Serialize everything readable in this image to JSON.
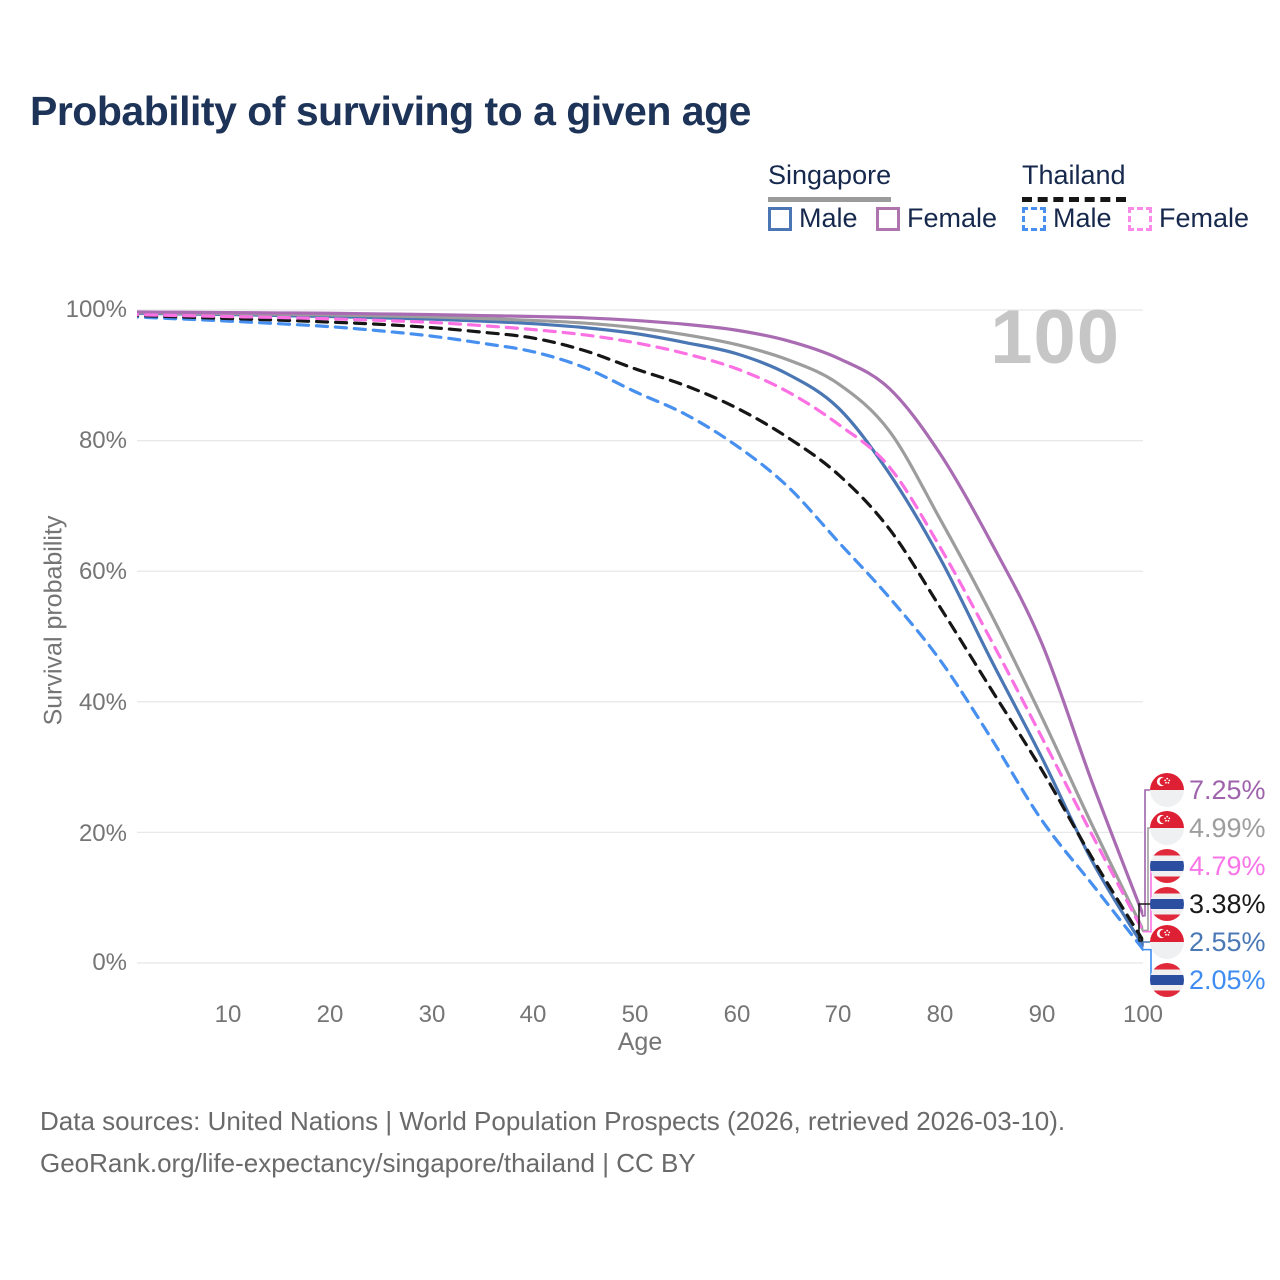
{
  "title": "Probability of surviving to a given age",
  "watermark": "100",
  "legend": {
    "singapore": {
      "label": "Singapore",
      "male": "Male",
      "female": "Female"
    },
    "thailand": {
      "label": "Thailand",
      "male": "Male",
      "female": "Female"
    }
  },
  "axes": {
    "x": {
      "label": "Age",
      "ticks": [
        "10",
        "20",
        "30",
        "40",
        "50",
        "60",
        "70",
        "80",
        "90",
        "100"
      ]
    },
    "y": {
      "label": "Survival probability",
      "ticks": [
        "100%",
        "80%",
        "60%",
        "40%",
        "20%",
        "0%"
      ]
    }
  },
  "end_labels": {
    "items": [
      {
        "value": "7.25%",
        "flag": "singapore",
        "color": "#9f63ac",
        "series": "Singapore Female"
      },
      {
        "value": "4.99%",
        "flag": "singapore",
        "color": "#9e9e9e",
        "series": "Singapore Both sexes"
      },
      {
        "value": "4.79%",
        "flag": "thailand",
        "color": "#f875e8",
        "series": "Thailand Female"
      },
      {
        "value": "3.38%",
        "flag": "thailand",
        "color": "#1a1a1a",
        "series": "Thailand Both sexes"
      },
      {
        "value": "2.55%",
        "flag": "singapore",
        "color": "#4b79b5",
        "series": "Singapore Male"
      },
      {
        "value": "2.05%",
        "flag": "thailand",
        "color": "#3f8df2",
        "series": "Thailand Male"
      }
    ]
  },
  "footer": {
    "line1": "Data sources: United Nations | World Population Prospects (2026, retrieved 2026-03-10).",
    "line2": "GeoRank.org/life-expectancy/singapore/thailand | CC BY"
  },
  "colors": {
    "title_text": "#1d3357",
    "legend_text": "#16294d",
    "tick_text": "#757575",
    "gridline": "#e8e8e8",
    "watermark": "#c6c6c6",
    "singapore_underline": "#9b9b9b",
    "thailand_underline": "#161616"
  },
  "chart_data": {
    "type": "line",
    "title": "Probability of surviving to a given age",
    "xlabel": "Age",
    "ylabel": "Survival probability",
    "xlim": [
      0,
      100
    ],
    "ylim": [
      0,
      100
    ],
    "grid": true,
    "legend_position": "top-right",
    "x": [
      0,
      5,
      10,
      15,
      20,
      25,
      30,
      35,
      40,
      45,
      50,
      55,
      60,
      65,
      70,
      75,
      80,
      85,
      90,
      95,
      100
    ],
    "series": [
      {
        "name": "Singapore Male",
        "country": "Singapore",
        "sex": "Male",
        "color": "#4a77b4",
        "dash": "solid",
        "end_label": "2.55%",
        "values": [
          99.5,
          99.4,
          99.3,
          99.15,
          99.0,
          98.8,
          98.6,
          98.3,
          97.9,
          97.3,
          96.4,
          95.0,
          93.3,
          90.2,
          85.0,
          75.0,
          62.0,
          46.5,
          31.5,
          15.5,
          2.55
        ]
      },
      {
        "name": "Singapore Both sexes",
        "country": "Singapore",
        "sex": "Both",
        "color": "#9d9d9d",
        "dash": "solid",
        "end_label": "4.99%",
        "values": [
          99.6,
          99.5,
          99.45,
          99.35,
          99.25,
          99.1,
          98.95,
          98.7,
          98.4,
          98.0,
          97.3,
          96.2,
          94.7,
          92.4,
          88.7,
          81.5,
          68.0,
          53.5,
          37.7,
          21.0,
          4.99
        ]
      },
      {
        "name": "Singapore Female",
        "country": "Singapore",
        "sex": "Female",
        "color": "#a96cb3",
        "dash": "solid",
        "end_label": "7.25%",
        "values": [
          99.7,
          99.65,
          99.6,
          99.55,
          99.5,
          99.4,
          99.3,
          99.15,
          99.0,
          98.8,
          98.4,
          97.8,
          96.9,
          95.3,
          92.6,
          88.0,
          78.0,
          64.5,
          49.0,
          27.5,
          7.25
        ]
      },
      {
        "name": "Thailand Male",
        "country": "Thailand",
        "sex": "Male",
        "color": "#4790f0",
        "dash": "dashed",
        "end_label": "2.05%",
        "values": [
          99.0,
          98.65,
          98.3,
          97.9,
          97.45,
          96.8,
          96.0,
          94.9,
          93.6,
          91.2,
          87.5,
          84.0,
          79.2,
          73.0,
          64.5,
          56.0,
          46.4,
          34.5,
          21.9,
          12.0,
          2.05
        ]
      },
      {
        "name": "Thailand Both sexes",
        "country": "Thailand",
        "sex": "Both",
        "color": "#161616",
        "dash": "dashed",
        "end_label": "3.38%",
        "values": [
          99.2,
          98.95,
          98.7,
          98.45,
          98.15,
          97.8,
          97.3,
          96.6,
          95.7,
          93.8,
          91.0,
          88.4,
          85.0,
          80.5,
          74.8,
          66.5,
          54.5,
          42.0,
          29.6,
          16.0,
          3.38
        ]
      },
      {
        "name": "Thailand Female",
        "country": "Thailand",
        "sex": "Female",
        "color": "#fb71e3",
        "dash": "dashed",
        "end_label": "4.79%",
        "values": [
          99.3,
          99.15,
          99.0,
          98.85,
          98.65,
          98.4,
          98.1,
          97.6,
          97.0,
          96.2,
          95.0,
          93.3,
          91.0,
          87.5,
          82.5,
          76.0,
          63.7,
          49.5,
          34.6,
          19.5,
          4.79
        ]
      }
    ]
  }
}
